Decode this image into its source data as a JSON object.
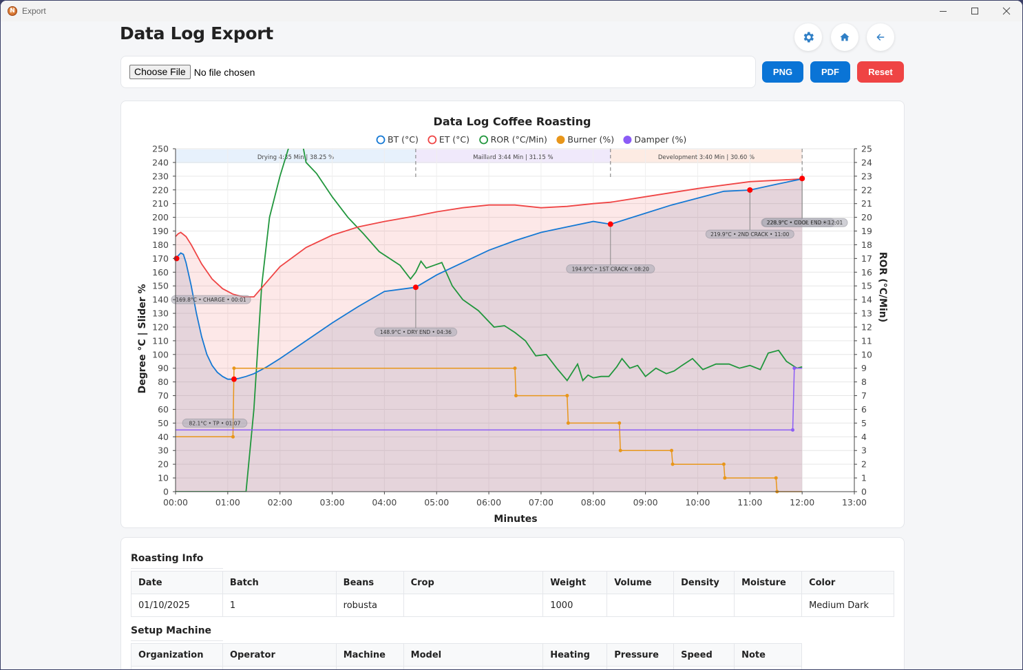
{
  "window": {
    "title": "Export",
    "app_icon_letter": "N",
    "controls": [
      "minimize",
      "maximize",
      "close"
    ]
  },
  "header": {
    "title": "Data Log Export",
    "icon_buttons": [
      {
        "name": "settings",
        "icon": "gear-icon"
      },
      {
        "name": "home",
        "icon": "home-icon"
      },
      {
        "name": "back",
        "icon": "arrow-left-icon"
      }
    ]
  },
  "file_input": {
    "button_label": "Choose File",
    "status": "No file chosen"
  },
  "actions": {
    "png_label": "PNG",
    "pdf_label": "PDF",
    "reset_label": "Reset"
  },
  "colors": {
    "primary": "#0a74d6",
    "danger": "#ef4444",
    "bt": "#1478d4",
    "et": "#ef4444",
    "ror": "#20963c",
    "burner": "#e8961a",
    "damper": "#8b5cf6"
  },
  "chart_data": {
    "type": "line",
    "title": "Data Log Coffee Roasting",
    "xlabel": "Minutes",
    "ylabel": "Degree °C | Slider %",
    "y2label": "ROR (°C/Min)",
    "xlim": [
      0,
      13
    ],
    "ylim": [
      0,
      250
    ],
    "y2lim": [
      0,
      25
    ],
    "x_ticks": [
      "00:00",
      "01:00",
      "02:00",
      "03:00",
      "04:00",
      "05:00",
      "06:00",
      "07:00",
      "08:00",
      "09:00",
      "10:00",
      "11:00",
      "12:00",
      "13:00"
    ],
    "y_ticks": [
      0,
      10,
      20,
      30,
      40,
      50,
      60,
      70,
      80,
      90,
      100,
      110,
      120,
      130,
      140,
      150,
      160,
      170,
      180,
      190,
      200,
      210,
      220,
      230,
      240,
      250
    ],
    "y2_ticks": [
      0,
      1,
      2,
      3,
      4,
      5,
      6,
      7,
      8,
      9,
      10,
      11,
      12,
      13,
      14,
      15,
      16,
      17,
      18,
      19,
      20,
      21,
      22,
      23,
      24,
      25
    ],
    "grid": true,
    "legend_position": "top-center",
    "legend": [
      {
        "label": "BT (°C)",
        "style": "ring",
        "color": "#1478d4"
      },
      {
        "label": "ET (°C)",
        "style": "ring",
        "color": "#ef4444"
      },
      {
        "label": "ROR (°C/Min)",
        "style": "ring",
        "color": "#20963c"
      },
      {
        "label": "Burner (%)",
        "style": "dot",
        "color": "#e8961a"
      },
      {
        "label": "Damper (%)",
        "style": "dot",
        "color": "#8b5cf6"
      }
    ],
    "phases": [
      {
        "name": "Drying",
        "duration": "4:35 Min",
        "percent": "38.25 %",
        "start": 0,
        "end": 4.6,
        "color": "#e7f1fc"
      },
      {
        "name": "Maillard",
        "duration": "3:44 Min",
        "percent": "31.15 %",
        "start": 4.6,
        "end": 8.33,
        "color": "#f0e9fb"
      },
      {
        "name": "Development",
        "duration": "3:40 Min",
        "percent": "30.60 %",
        "start": 8.33,
        "end": 12.0,
        "color": "#fdebe3"
      }
    ],
    "series": [
      {
        "name": "BT (°C)",
        "axis": "left",
        "x": [
          0,
          0.05,
          0.1,
          0.15,
          0.2,
          0.3,
          0.4,
          0.5,
          0.6,
          0.7,
          0.8,
          0.9,
          1.0,
          1.1,
          1.2,
          1.35,
          1.5,
          1.75,
          2.0,
          2.5,
          3.0,
          3.5,
          4.0,
          4.6,
          5.0,
          5.5,
          6.0,
          6.5,
          7.0,
          7.5,
          8.0,
          8.33,
          9.0,
          9.5,
          10.0,
          10.5,
          11.0,
          11.5,
          12.0
        ],
        "y": [
          170,
          172,
          174,
          173,
          167,
          150,
          130,
          113,
          100,
          92,
          87,
          84,
          82,
          82,
          82.5,
          84,
          86,
          91,
          97,
          110,
          123,
          135,
          146,
          149,
          158,
          167,
          176,
          183,
          189,
          193,
          197,
          195,
          203,
          209,
          214,
          219,
          219.9,
          224,
          228
        ]
      },
      {
        "name": "ET (°C)",
        "axis": "left",
        "x": [
          0,
          0.05,
          0.1,
          0.2,
          0.3,
          0.5,
          0.7,
          0.9,
          1.1,
          1.3,
          1.5,
          1.75,
          2.0,
          2.5,
          3.0,
          3.5,
          4.0,
          4.6,
          5.0,
          5.5,
          6.0,
          6.5,
          7.0,
          7.5,
          8.0,
          8.33,
          9.0,
          10.0,
          11.0,
          12.0
        ],
        "y": [
          186,
          188,
          189,
          186,
          180,
          166,
          155,
          148,
          144,
          142,
          142,
          153,
          164,
          178,
          187,
          193,
          197,
          201,
          204,
          207,
          209,
          209,
          207,
          208,
          210,
          211,
          215,
          221,
          226,
          228
        ]
      },
      {
        "name": "ROR (°C/Min)",
        "axis": "right",
        "x": [
          0,
          1.35,
          1.5,
          1.65,
          1.8,
          2.0,
          2.2,
          2.35,
          2.5,
          2.7,
          3.0,
          3.3,
          3.6,
          3.9,
          4.3,
          4.5,
          4.6,
          4.7,
          4.8,
          4.95,
          5.1,
          5.3,
          5.5,
          5.8,
          6.1,
          6.3,
          6.5,
          6.7,
          6.9,
          7.1,
          7.3,
          7.5,
          7.7,
          7.8,
          7.9,
          8.0,
          8.15,
          8.3,
          8.45,
          8.55,
          8.7,
          8.85,
          9.0,
          9.2,
          9.4,
          9.55,
          9.7,
          9.9,
          10.1,
          10.35,
          10.6,
          10.8,
          11.0,
          11.2,
          11.35,
          11.55,
          11.7,
          11.9,
          12.0
        ],
        "y": [
          0,
          0,
          6,
          15,
          20,
          23,
          25.5,
          27,
          24,
          23.2,
          21.5,
          20,
          18.8,
          17.5,
          16.5,
          15.5,
          16.0,
          16.8,
          16.3,
          16.5,
          16.7,
          15,
          14,
          13.2,
          12,
          12.1,
          11.6,
          11.0,
          9.9,
          10.0,
          9.0,
          8.1,
          9.3,
          8.1,
          8.5,
          8.3,
          8.4,
          8.4,
          9.1,
          9.7,
          9.0,
          9.2,
          8.4,
          9.0,
          8.6,
          8.8,
          9.2,
          9.7,
          8.9,
          9.3,
          9.3,
          9.0,
          9.2,
          8.9,
          10.1,
          10.3,
          9.5,
          9.0,
          9.1
        ]
      },
      {
        "name": "Burner (%)",
        "axis": "left",
        "step": true,
        "points": [
          [
            0,
            40
          ],
          [
            1.1,
            40
          ],
          [
            1.12,
            90
          ],
          [
            6.5,
            90
          ],
          [
            6.52,
            70
          ],
          [
            7.5,
            70
          ],
          [
            7.52,
            50
          ],
          [
            8.5,
            50
          ],
          [
            8.52,
            30
          ],
          [
            9.5,
            30
          ],
          [
            9.52,
            20
          ],
          [
            10.5,
            20
          ],
          [
            10.52,
            10
          ],
          [
            11.5,
            10
          ],
          [
            11.52,
            0
          ],
          [
            12.0,
            0
          ]
        ]
      },
      {
        "name": "Damper (%)",
        "axis": "left",
        "points": [
          [
            0,
            45
          ],
          [
            11.82,
            45
          ],
          [
            11.85,
            90
          ],
          [
            12.0,
            90
          ]
        ]
      }
    ],
    "events": [
      {
        "label": "169.8°C • CHARGE • 00:01",
        "x": 0.02,
        "y": 170
      },
      {
        "label": "82.1°C • TP • 01:07",
        "x": 1.12,
        "y": 82
      },
      {
        "label": "148.9°C • DRY END • 04:36",
        "x": 4.6,
        "y": 149
      },
      {
        "label": "194.9°C • 1ST CRACK • 08:20",
        "x": 8.33,
        "y": 195
      },
      {
        "label": "219.9°C • 2ND CRACK • 11:00",
        "x": 11.0,
        "y": 219.9
      },
      {
        "label": "228.3°C • DROP • 12:00",
        "x": 12.0,
        "y": 228.3
      },
      {
        "label": "228.9°C • COOL END • 12:01",
        "x": 12.0,
        "y": 228.3
      }
    ]
  },
  "roasting_info": {
    "title": "Roasting Info",
    "columns": [
      "Date",
      "Batch",
      "Beans",
      "Crop",
      "Weight",
      "Volume",
      "Density",
      "Moisture",
      "Color"
    ],
    "rows": [
      [
        "01/10/2025",
        "1",
        "robusta",
        "",
        "1000",
        "",
        "",
        "",
        "Medium Dark"
      ]
    ]
  },
  "setup_machine": {
    "title": "Setup Machine",
    "columns": [
      "Organization",
      "Operator",
      "Machine",
      "Model",
      "Heating",
      "Pressure",
      "Speed",
      "Note"
    ]
  }
}
